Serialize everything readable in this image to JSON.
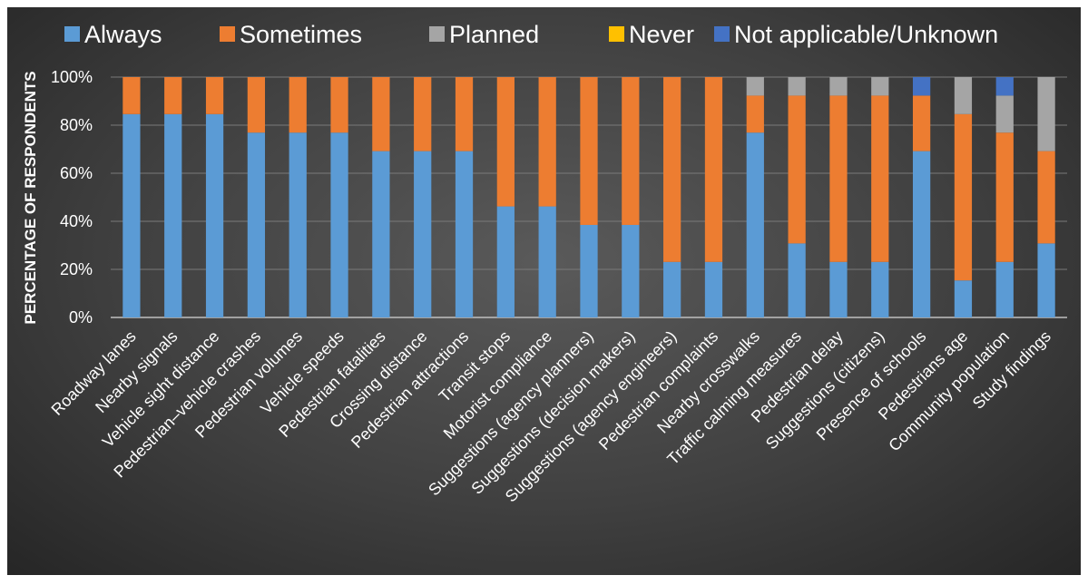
{
  "chart_data": {
    "type": "bar",
    "stacked": true,
    "ylabel": "PERCENTAGE OF RESPONDENTS",
    "xlabel": "",
    "ylim": [
      0,
      100
    ],
    "y_ticks": [
      "0%",
      "20%",
      "40%",
      "60%",
      "80%",
      "100%"
    ],
    "legend_position": "top",
    "grid": true,
    "categories": [
      "Roadway lanes",
      "Nearby signals",
      "Vehicle sight distance",
      "Pedestrian–vehicle crashes",
      "Pedestrian volumes",
      "Vehicle speeds",
      "Pedestrian fatalities",
      "Crossing distance",
      "Pedestrian attractions",
      "Transit stops",
      "Motorist compliance",
      "Suggestions (agency planners)",
      "Suggestions (decision makers)",
      "Suggestions (agency engineers)",
      "Pedestrian complaints",
      "Nearby crosswalks",
      "Traffic calming measures",
      "Pedestrian delay",
      "Suggestions (citizens)",
      "Presence of schools",
      "Pedestrians age",
      "Community population",
      "Study findings"
    ],
    "series": [
      {
        "name": "Always",
        "color": "#5b9bd5",
        "values": [
          84.6,
          84.6,
          84.6,
          76.9,
          76.9,
          76.9,
          69.2,
          69.2,
          69.2,
          46.2,
          46.2,
          38.5,
          38.5,
          23.1,
          23.1,
          76.9,
          30.8,
          23.1,
          23.1,
          69.2,
          15.4,
          23.1,
          30.8
        ]
      },
      {
        "name": "Sometimes",
        "color": "#ed7d31",
        "values": [
          15.4,
          15.4,
          15.4,
          23.1,
          23.1,
          23.1,
          30.8,
          30.8,
          30.8,
          53.8,
          53.8,
          61.5,
          61.5,
          76.9,
          76.9,
          15.4,
          61.5,
          69.2,
          69.2,
          23.1,
          69.2,
          53.8,
          38.4
        ]
      },
      {
        "name": "Planned",
        "color": "#a5a5a5",
        "values": [
          0,
          0,
          0,
          0,
          0,
          0,
          0,
          0,
          0,
          0,
          0,
          0,
          0,
          0,
          0,
          7.7,
          7.7,
          7.7,
          7.7,
          0,
          15.4,
          15.4,
          30.8
        ]
      },
      {
        "name": "Never",
        "color": "#ffc000",
        "values": [
          0,
          0,
          0,
          0,
          0,
          0,
          0,
          0,
          0,
          0,
          0,
          0,
          0,
          0,
          0,
          0,
          0,
          0,
          0,
          0,
          0,
          0,
          0
        ]
      },
      {
        "name": "Not applicable/Unknown",
        "color": "#4472c4",
        "values": [
          0,
          0,
          0,
          0,
          0,
          0,
          0,
          0,
          0,
          0,
          0,
          0,
          0,
          0,
          0,
          0,
          0,
          0,
          0,
          7.7,
          0,
          7.7,
          0
        ]
      }
    ]
  }
}
